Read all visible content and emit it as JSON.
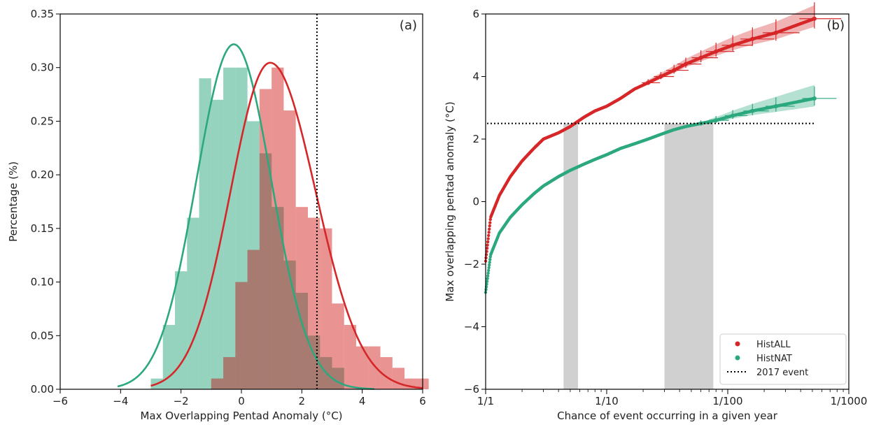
{
  "colors": {
    "histall": "#d62728",
    "histnat": "#2ca87f",
    "shade": "#c8c8c8",
    "overlap": "#9a7a6e"
  },
  "chart_data": [
    {
      "type": "bar",
      "panel_label": "(a)",
      "xlabel": "Max Overlapping Pentad Anomaly (°C)",
      "ylabel": "Percentage (%)",
      "xlim": [
        -6,
        6
      ],
      "ylim": [
        0,
        0.35
      ],
      "xticks": [
        -6,
        -4,
        -2,
        0,
        2,
        4,
        6
      ],
      "yticks": [
        0.0,
        0.05,
        0.1,
        0.15,
        0.2,
        0.25,
        0.3,
        0.35
      ],
      "xtick_labels": [
        "−6",
        "−4",
        "−2",
        "0",
        "2",
        "4",
        "6"
      ],
      "ytick_labels": [
        "0.00",
        "0.05",
        "0.10",
        "0.15",
        "0.20",
        "0.25",
        "0.30",
        "0.35"
      ],
      "event_line_x": 2.5,
      "bin_edges": [
        -3.0,
        -2.6,
        -2.2,
        -1.8,
        -1.4,
        -1.0,
        -0.6,
        -0.2,
        0.2,
        0.6,
        1.0,
        1.4,
        1.8,
        2.2,
        2.6,
        3.0,
        3.4,
        3.8,
        4.2,
        4.6,
        5.0,
        5.4,
        5.8,
        6.2
      ],
      "series": [
        {
          "name": "HistNAT",
          "values": [
            0.01,
            0.06,
            0.11,
            0.16,
            0.29,
            0.27,
            0.3,
            0.3,
            0.25,
            0.22,
            0.17,
            0.12,
            0.09,
            0.05,
            0.03,
            0.02,
            0.0,
            0.0,
            0.0,
            0.0,
            0.0,
            0.0,
            0.0
          ],
          "fit_mean": -0.25,
          "fit_sd": 1.24,
          "fit_range": [
            -4.1,
            4.4
          ]
        },
        {
          "name": "HistALL",
          "values": [
            0.0,
            0.0,
            0.0,
            0.0,
            0.0,
            0.01,
            0.03,
            0.1,
            0.13,
            0.28,
            0.3,
            0.26,
            0.17,
            0.16,
            0.15,
            0.08,
            0.06,
            0.04,
            0.04,
            0.03,
            0.02,
            0.01,
            0.01
          ],
          "fit_mean": 0.95,
          "fit_sd": 1.31,
          "fit_range": [
            -3.0,
            6.0
          ],
          "fit_skew": 1.15
        }
      ]
    },
    {
      "type": "scatter",
      "panel_label": "(b)",
      "xlabel": "Chance of event occurring in a given year",
      "ylabel": "Max overlapping pentad anomaly (°C)",
      "xscale": "log",
      "xlim": [
        1,
        1000
      ],
      "ylim": [
        -6,
        6
      ],
      "xticks": [
        1,
        10,
        100,
        1000
      ],
      "xtick_labels": [
        "1/1",
        "1/10",
        "1/100",
        "1/1000"
      ],
      "yticks": [
        -6,
        -4,
        -2,
        0,
        2,
        4,
        6
      ],
      "ytick_labels": [
        "−6",
        "−4",
        "−2",
        "0",
        "2",
        "4",
        "6"
      ],
      "event_line_y": 2.5,
      "shaded_ranges_x": [
        [
          4.4,
          5.8
        ],
        [
          30,
          76
        ]
      ],
      "series": [
        {
          "name": "HistALL",
          "return_periods": [
            1.0,
            1.1,
            1.3,
            1.6,
            2.0,
            2.5,
            3.0,
            4.0,
            5.0,
            6.5,
            8.0,
            10.0,
            13.0,
            17.0,
            22.0,
            28.0,
            36.0,
            45.0,
            60.0,
            80.0,
            110.0,
            160.0,
            250.0,
            520.0
          ],
          "anomalies": [
            -1.9,
            -0.5,
            0.2,
            0.8,
            1.3,
            1.7,
            2.0,
            2.2,
            2.4,
            2.7,
            2.9,
            3.05,
            3.3,
            3.6,
            3.8,
            4.0,
            4.2,
            4.4,
            4.6,
            4.8,
            5.0,
            5.2,
            5.4,
            5.85
          ]
        },
        {
          "name": "HistNAT",
          "return_periods": [
            1.0,
            1.1,
            1.3,
            1.6,
            2.0,
            2.5,
            3.0,
            4.0,
            5.0,
            6.5,
            8.0,
            10.0,
            13.0,
            17.0,
            22.0,
            28.0,
            36.0,
            45.0,
            60.0,
            80.0,
            110.0,
            160.0,
            250.0,
            520.0
          ],
          "anomalies": [
            -2.9,
            -1.7,
            -1.0,
            -0.5,
            -0.1,
            0.25,
            0.5,
            0.8,
            1.0,
            1.2,
            1.35,
            1.5,
            1.7,
            1.85,
            2.0,
            2.15,
            2.3,
            2.4,
            2.5,
            2.6,
            2.75,
            2.9,
            3.05,
            3.3
          ]
        }
      ],
      "legend": [
        {
          "label": "HistALL",
          "marker": "dot",
          "color": "#d62728"
        },
        {
          "label": "HistNAT",
          "marker": "dot",
          "color": "#2ca87f"
        },
        {
          "label": "2017 event",
          "marker": "dotted-line",
          "color": "#000000"
        }
      ],
      "legend_position": "lower right"
    }
  ]
}
